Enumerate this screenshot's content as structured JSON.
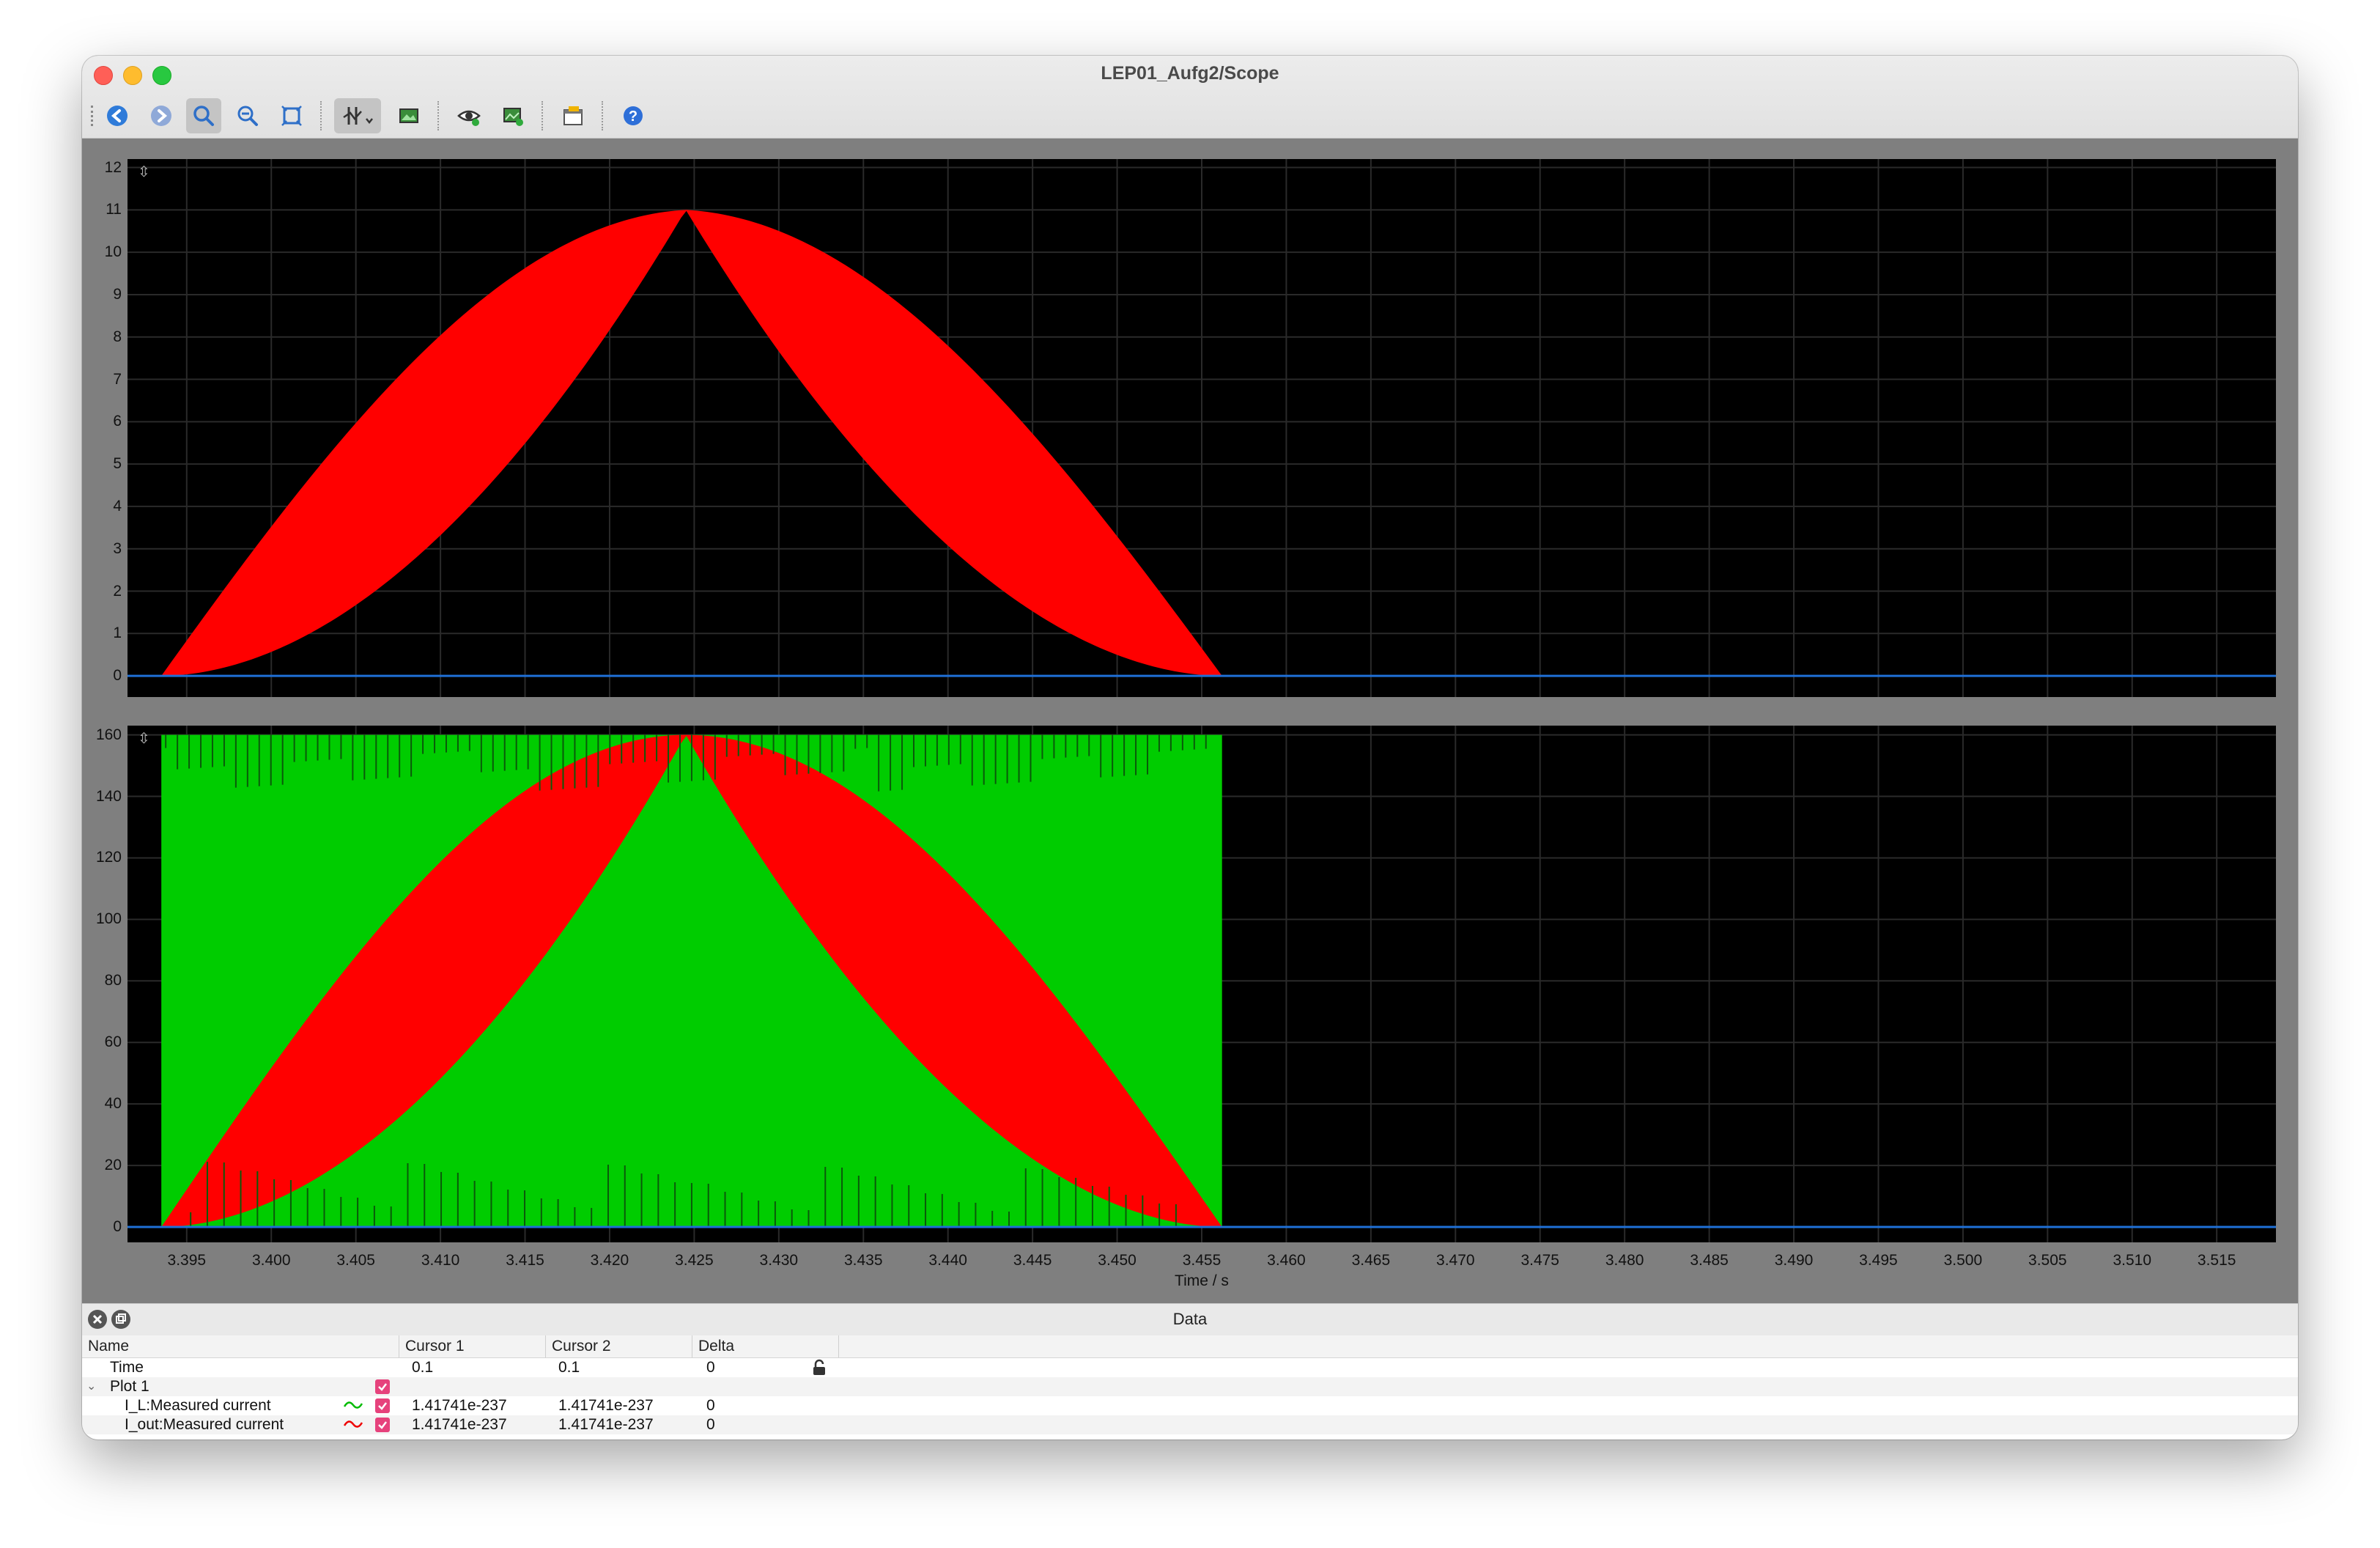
{
  "window": {
    "title": "LEP01_Aufg2/Scope"
  },
  "toolbar": {
    "icons": [
      "arrow-left-icon",
      "arrow-right-icon",
      "zoom-icon",
      "zoom-out-icon",
      "zoom-fit-icon",
      "cursor-icon",
      "image-icon",
      "eye-icon",
      "export-icon",
      "window-icon",
      "help-icon"
    ]
  },
  "colors": {
    "i_l": "#00cc00",
    "i_out": "#ff0000",
    "zero_line": "#1f6fd6",
    "grid": "#2a2a2a"
  },
  "chart_data": [
    {
      "type": "area",
      "title": "",
      "x_range": [
        3.3915,
        3.5185
      ],
      "ylim": [
        -0.5,
        12.2
      ],
      "y_ticks": [
        "0",
        "1",
        "2",
        "3",
        "4",
        "5",
        "6",
        "7",
        "8",
        "9",
        "10",
        "11",
        "12"
      ],
      "grid": true,
      "series": [
        {
          "values_description": "",
          "start": 3.3935,
          "peak": 3.4245,
          "end": 3.4562,
          "peak_value": 11,
          "envelope_exponent_inner": 2.0,
          "envelope_exponent_outer": 0.65
        }
      ]
    },
    {
      "type": "area",
      "title": "",
      "x_range": [
        3.3915,
        3.5185
      ],
      "ylim": [
        -5,
        163
      ],
      "y_ticks": [
        "0",
        "20",
        "40",
        "60",
        "80",
        "100",
        "120",
        "140",
        "160"
      ],
      "grid": true,
      "series": [
        {
          "start": 3.3935,
          "end": 3.4562,
          "max_value": 160
        },
        {
          "start": 3.3935,
          "peak": 3.4245,
          "end": 3.4562,
          "peak_value": 160
        }
      ]
    }
  ],
  "x_axis": {
    "ticks": [
      "3.395",
      "3.400",
      "3.405",
      "3.410",
      "3.415",
      "3.420",
      "3.425",
      "3.430",
      "3.435",
      "3.440",
      "3.445",
      "3.450",
      "3.455",
      "3.460",
      "3.465",
      "3.470",
      "3.475",
      "3.480",
      "3.485",
      "3.490",
      "3.495",
      "3.500",
      "3.505",
      "3.510",
      "3.515"
    ],
    "label": "Time / s"
  },
  "data_panel": {
    "title": "Data",
    "columns": [
      "Name",
      "Cursor 1",
      "Cursor 2",
      "Delta"
    ],
    "time_row": {
      "name": "Time",
      "cursor1": "0.1",
      "cursor2": "0.1",
      "delta": "0"
    },
    "group": "Plot 1",
    "rows": [
      {
        "name": "I_L:Measured current",
        "cursor1": "1.41741e-237",
        "cursor2": "1.41741e-237",
        "delta": "0"
      },
      {
        "name": "I_out:Measured current",
        "cursor1": "1.41741e-237",
        "cursor2": "1.41741e-237",
        "delta": "0"
      }
    ]
  }
}
